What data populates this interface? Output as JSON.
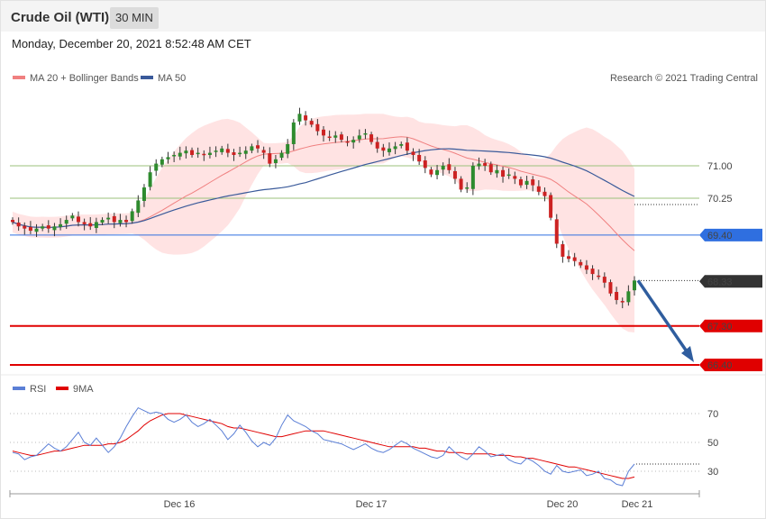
{
  "header": {
    "title": "Crude Oil (WTI)",
    "timeframe": "30 MIN"
  },
  "datetime": "Monday, December 20, 2021 8:52:48 AM CET",
  "copyright": "Research © 2021 Trading Central",
  "legend_main": [
    {
      "label": "MA 20 + Bollinger Bands",
      "color": "#f08080"
    },
    {
      "label": "MA 50",
      "color": "#3a5a9a"
    }
  ],
  "legend_rsi": [
    {
      "label": "RSI",
      "color": "#5b7fd6"
    },
    {
      "label": "9MA",
      "color": "#e00000"
    }
  ],
  "levels": [
    {
      "value": "71.00",
      "color": "#2e7d32",
      "style": "resistance"
    },
    {
      "value": "70.25",
      "color": "#2e7d32",
      "style": "resistance"
    },
    {
      "value": "69.40",
      "color": "#2f6fe0",
      "style": "pivot"
    },
    {
      "value": "68.33",
      "color": "#333333",
      "style": "last"
    },
    {
      "value": "67.30",
      "color": "#e00000",
      "style": "support"
    },
    {
      "value": "66.40",
      "color": "#e00000",
      "style": "support"
    }
  ],
  "x_labels": [
    "Dec 16",
    "Dec 17",
    "Dec 20",
    "Dec 21"
  ],
  "rsi_ticks": [
    "70",
    "50",
    "30"
  ],
  "chart_data": {
    "type": "candlestick",
    "ylim": [
      66.2,
      72.4
    ],
    "rsi_ylim": [
      10,
      80
    ],
    "price_path": [
      69.7,
      69.6,
      69.55,
      69.5,
      69.55,
      69.6,
      69.55,
      69.6,
      69.65,
      69.75,
      69.85,
      69.7,
      69.65,
      69.6,
      69.7,
      69.75,
      69.8,
      69.7,
      69.75,
      69.7,
      69.95,
      70.2,
      70.5,
      70.85,
      71.05,
      71.15,
      71.2,
      71.25,
      71.3,
      71.35,
      71.25,
      71.3,
      71.25,
      71.3,
      71.35,
      71.4,
      71.3,
      71.25,
      71.3,
      71.35,
      71.45,
      71.4,
      71.3,
      71.05,
      71.15,
      71.3,
      71.5,
      72.0,
      72.2,
      72.05,
      71.95,
      71.8,
      71.7,
      71.65,
      71.7,
      71.6,
      71.55,
      71.6,
      71.7,
      71.75,
      71.55,
      71.4,
      71.35,
      71.4,
      71.45,
      71.5,
      71.35,
      71.25,
      71.1,
      70.95,
      70.8,
      70.9,
      71.0,
      70.9,
      70.7,
      70.45,
      70.5,
      71.0,
      71.05,
      71.0,
      70.85,
      70.9,
      70.75,
      70.8,
      70.7,
      70.55,
      70.65,
      70.55,
      70.4,
      70.3,
      69.8,
      69.2,
      68.9,
      68.85,
      68.8,
      68.7,
      68.6,
      68.5,
      68.45,
      68.3,
      68.05,
      67.9,
      67.85,
      68.1,
      68.35
    ],
    "rsi_path": [
      43,
      42,
      38,
      40,
      41,
      45,
      49,
      46,
      44,
      47,
      52,
      57,
      50,
      48,
      53,
      48,
      43,
      47,
      53,
      61,
      68,
      74,
      72,
      70,
      71,
      70,
      66,
      64,
      66,
      69,
      64,
      61,
      63,
      66,
      62,
      58,
      52,
      56,
      62,
      57,
      51,
      47,
      50,
      48,
      53,
      62,
      69,
      65,
      63,
      61,
      58,
      56,
      52,
      51,
      50,
      49,
      47,
      45,
      47,
      49,
      46,
      44,
      43,
      45,
      48,
      51,
      49,
      46,
      44,
      42,
      40,
      39,
      41,
      47,
      43,
      40,
      38,
      42,
      47,
      44,
      40,
      41,
      42,
      38,
      36,
      35,
      39,
      37,
      34,
      30,
      28,
      34,
      30,
      29,
      30,
      31,
      27,
      28,
      30,
      25,
      24,
      21,
      20,
      30,
      35
    ],
    "rsi_ma_path": [
      44,
      43,
      42,
      41,
      41,
      42,
      43,
      44,
      44,
      45,
      46,
      47,
      48,
      48,
      48,
      48,
      49,
      49,
      50,
      52,
      55,
      58,
      62,
      65,
      67,
      69,
      70,
      70,
      70,
      69,
      68,
      67,
      66,
      65,
      64,
      63,
      61,
      60,
      60,
      59,
      58,
      57,
      56,
      55,
      54,
      54,
      55,
      56,
      57,
      58,
      58,
      58,
      58,
      57,
      56,
      55,
      54,
      53,
      52,
      51,
      50,
      49,
      48,
      47,
      47,
      47,
      47,
      47,
      46,
      46,
      45,
      44,
      44,
      43,
      43,
      43,
      42,
      42,
      42,
      42,
      42,
      41,
      41,
      41,
      40,
      40,
      39,
      39,
      38,
      37,
      36,
      35,
      34,
      33,
      33,
      32,
      31,
      30,
      29,
      28,
      27,
      26,
      25,
      25,
      26
    ]
  }
}
